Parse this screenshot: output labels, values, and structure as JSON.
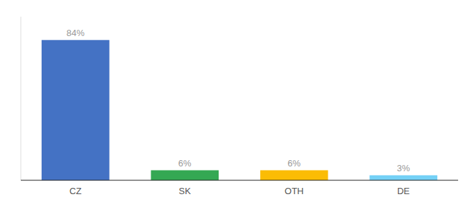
{
  "chart_data": {
    "type": "bar",
    "categories": [
      "CZ",
      "SK",
      "OTH",
      "DE"
    ],
    "values": [
      84,
      6,
      6,
      3
    ],
    "value_labels": [
      "84%",
      "6%",
      "6%",
      "3%"
    ],
    "colors": [
      "#4472c4",
      "#34a853",
      "#fbbc04",
      "#74d1f6"
    ],
    "ylim": [
      0,
      98
    ],
    "data_labels": true,
    "tick_labels": "x"
  }
}
